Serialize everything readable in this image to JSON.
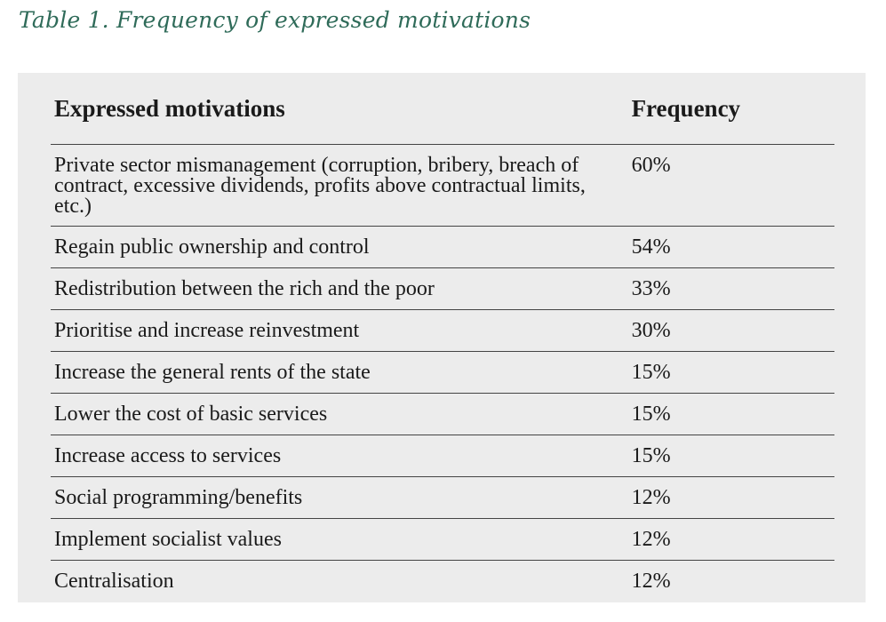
{
  "caption": "Table 1. Frequency of expressed motivations",
  "table": {
    "headers": [
      "Expressed motivations",
      "Frequency"
    ],
    "rows": [
      {
        "motivation": "Private sector mismanagement (corruption, bribery, breach of contract, excessive dividends, profits above contractual limits, etc.)",
        "frequency": "60%"
      },
      {
        "motivation": "Regain public ownership and control",
        "frequency": "54%"
      },
      {
        "motivation": "Redistribution between the rich and the poor",
        "frequency": "33%"
      },
      {
        "motivation": "Prioritise and increase reinvestment",
        "frequency": "30%"
      },
      {
        "motivation": "Increase the general rents of the state",
        "frequency": "15%"
      },
      {
        "motivation": "Lower the cost of basic services",
        "frequency": "15%"
      },
      {
        "motivation": "Increase access to services",
        "frequency": "15%"
      },
      {
        "motivation": "Social programming/benefits",
        "frequency": "12%"
      },
      {
        "motivation": "Implement socialist values",
        "frequency": "12%"
      },
      {
        "motivation": "Centralisation",
        "frequency": "12%"
      }
    ]
  }
}
